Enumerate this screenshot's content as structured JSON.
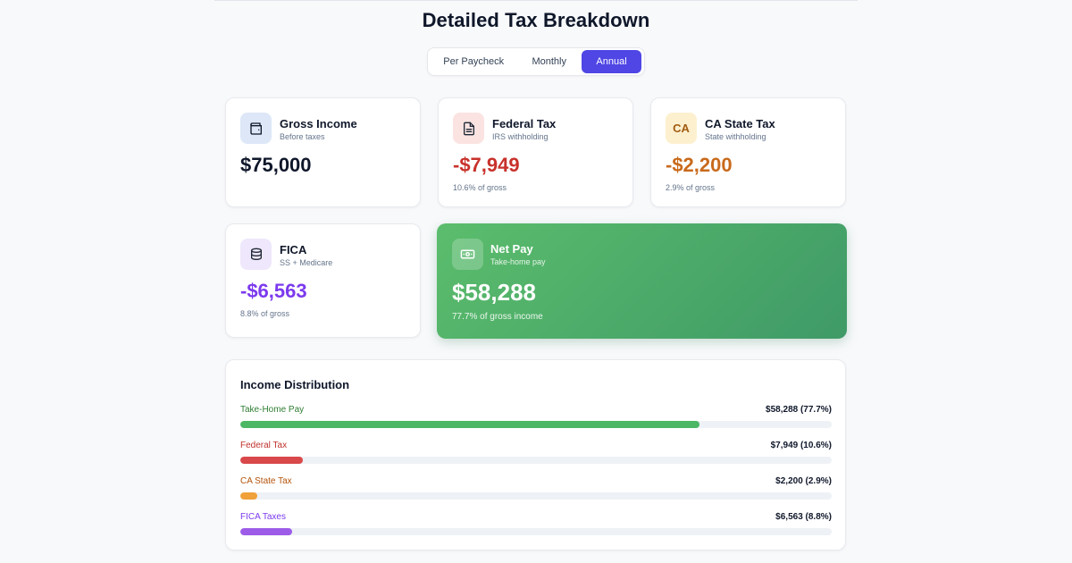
{
  "page": {
    "title": "Detailed Tax Breakdown"
  },
  "tabs": [
    {
      "label": "Per Paycheck",
      "active": false
    },
    {
      "label": "Monthly",
      "active": false
    },
    {
      "label": "Annual",
      "active": true
    }
  ],
  "cards": {
    "gross": {
      "title": "Gross Income",
      "subtitle": "Before taxes",
      "value": "$75,000",
      "icon": "wallet-icon",
      "accent": "#0f172a",
      "icon_bg": "#dde7f7"
    },
    "federal": {
      "title": "Federal Tax",
      "subtitle": "IRS withholding",
      "value": "-$7,949",
      "note": "10.6% of gross",
      "icon": "document-icon",
      "accent": "#c8322b",
      "icon_bg": "#fbe3e1"
    },
    "state": {
      "title": "CA State Tax",
      "subtitle": "State withholding",
      "value": "-$2,200",
      "note": "2.9% of gross",
      "icon_text": "CA",
      "accent": "#c96a1c",
      "icon_bg": "#fdf0cf"
    },
    "fica": {
      "title": "FICA",
      "subtitle": "SS + Medicare",
      "value": "-$6,563",
      "note": "8.8% of gross",
      "icon": "database-icon",
      "accent": "#7c3aed",
      "icon_bg": "#efe7fb"
    },
    "net": {
      "title": "Net Pay",
      "subtitle": "Take-home pay",
      "value": "$58,288",
      "note": "77.7% of gross income",
      "icon": "cash-icon"
    }
  },
  "distribution": {
    "title": "Income Distribution",
    "rows": [
      {
        "label": "Take-Home Pay",
        "amount": "$58,288 (77.7%)",
        "percent": 77.7,
        "color": "#4cb765",
        "label_color": "#2e7d32"
      },
      {
        "label": "Federal Tax",
        "amount": "$7,949 (10.6%)",
        "percent": 10.6,
        "color": "#d9484a",
        "label_color": "#c0312b"
      },
      {
        "label": "CA State Tax",
        "amount": "$2,200 (2.9%)",
        "percent": 2.9,
        "color": "#f0a13a",
        "label_color": "#b45309"
      },
      {
        "label": "FICA Taxes",
        "amount": "$6,563 (8.8%)",
        "percent": 8.8,
        "color": "#9d5ce8",
        "label_color": "#7c3aed"
      }
    ]
  }
}
